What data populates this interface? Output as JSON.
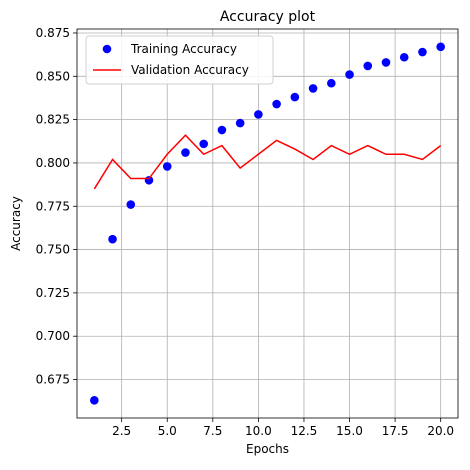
{
  "chart_data": {
    "type": "line",
    "title": "Accuracy plot",
    "xlabel": "Epochs",
    "ylabel": "Accuracy",
    "xlim": [
      0.05,
      20.95
    ],
    "ylim": [
      0.6528,
      0.8773
    ],
    "xticks": [
      2.5,
      5.0,
      7.5,
      10.0,
      12.5,
      15.0,
      17.5,
      20.0
    ],
    "yticks": [
      0.675,
      0.7,
      0.725,
      0.75,
      0.775,
      0.8,
      0.825,
      0.85,
      0.875
    ],
    "grid": true,
    "legend_position": "top-left",
    "x": [
      1,
      2,
      3,
      4,
      5,
      6,
      7,
      8,
      9,
      10,
      11,
      12,
      13,
      14,
      15,
      16,
      17,
      18,
      19,
      20
    ],
    "series": [
      {
        "name": "Training Accuracy",
        "style": "scatter",
        "color": "#0000ff",
        "values": [
          0.663,
          0.756,
          0.776,
          0.79,
          0.798,
          0.806,
          0.811,
          0.819,
          0.823,
          0.828,
          0.834,
          0.838,
          0.843,
          0.846,
          0.851,
          0.856,
          0.858,
          0.861,
          0.864,
          0.867
        ]
      },
      {
        "name": "Validation Accuracy",
        "style": "line",
        "color": "#ff0000",
        "values": [
          0.785,
          0.802,
          0.791,
          0.791,
          0.805,
          0.816,
          0.805,
          0.81,
          0.797,
          0.805,
          0.813,
          0.808,
          0.802,
          0.81,
          0.805,
          0.81,
          0.805,
          0.805,
          0.802,
          0.81
        ]
      }
    ]
  }
}
